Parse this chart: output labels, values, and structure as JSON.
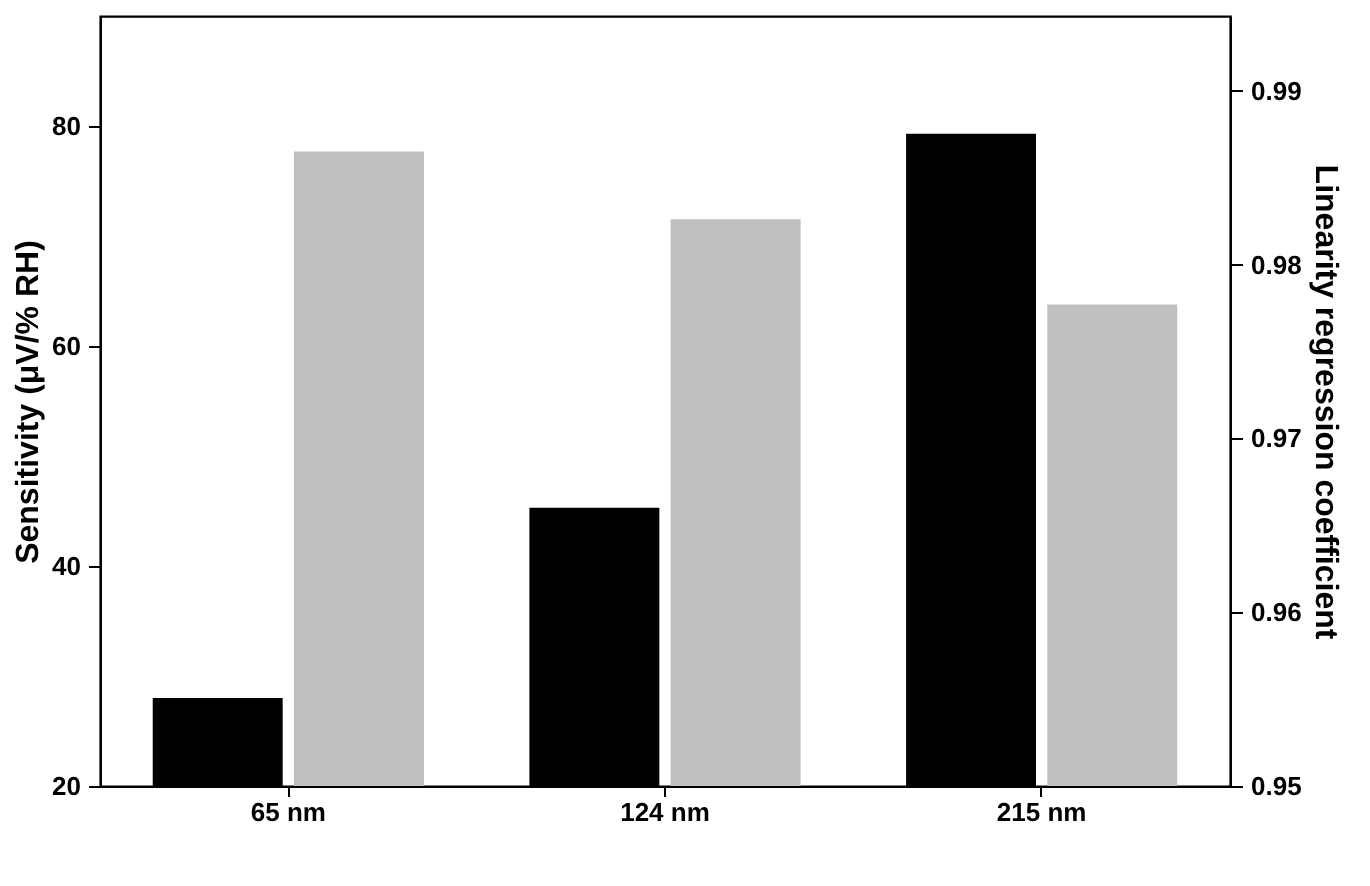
{
  "chart_data": {
    "type": "bar",
    "categories": [
      "65 nm",
      "124 nm",
      "215 nm"
    ],
    "ylabel": "Sensitivity (μV/% RH)",
    "y2label": "Linearity regression coefficient",
    "series": [
      {
        "color": "#000000",
        "values": [
          28,
          45.3,
          79.3
        ]
      },
      {
        "color": "#bfbfbf",
        "axis": "y2",
        "values": [
          0.9865,
          0.9826,
          0.9777
        ]
      }
    ],
    "ylim": [
      20,
      90
    ],
    "yticks": [
      20,
      40,
      60,
      80
    ],
    "y2lim": [
      0.95,
      0.9943
    ],
    "y2ticks": [
      0.95,
      0.96,
      0.97,
      0.98,
      0.99
    ],
    "grid": false
  }
}
